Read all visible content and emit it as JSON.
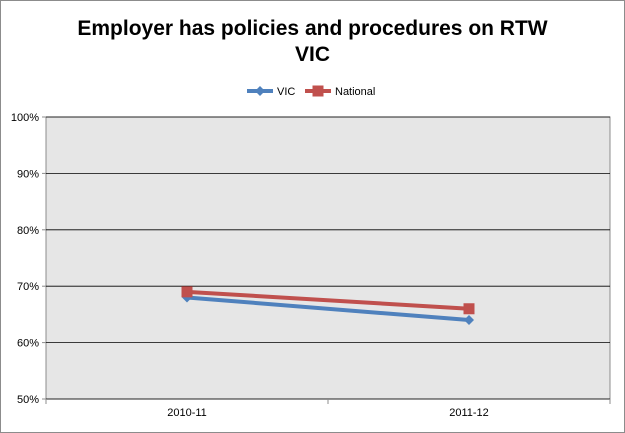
{
  "chart_data": {
    "type": "line",
    "title": [
      "Employer has policies and procedures on RTW",
      "VIC"
    ],
    "categories": [
      "2010-11",
      "2011-12"
    ],
    "series": [
      {
        "name": "VIC",
        "values": [
          68,
          64
        ],
        "color": "#4f81bd",
        "marker": "diamond"
      },
      {
        "name": "National",
        "values": [
          69,
          66
        ],
        "color": "#c0504d",
        "marker": "square"
      }
    ],
    "ylim": [
      50,
      100
    ],
    "yticks": [
      50,
      60,
      70,
      80,
      90,
      100
    ],
    "ytick_labels": [
      "50%",
      "60%",
      "70%",
      "80%",
      "90%",
      "100%"
    ],
    "grid": true,
    "plot_background": "#e6e6e6",
    "legend_position": "top-center"
  }
}
